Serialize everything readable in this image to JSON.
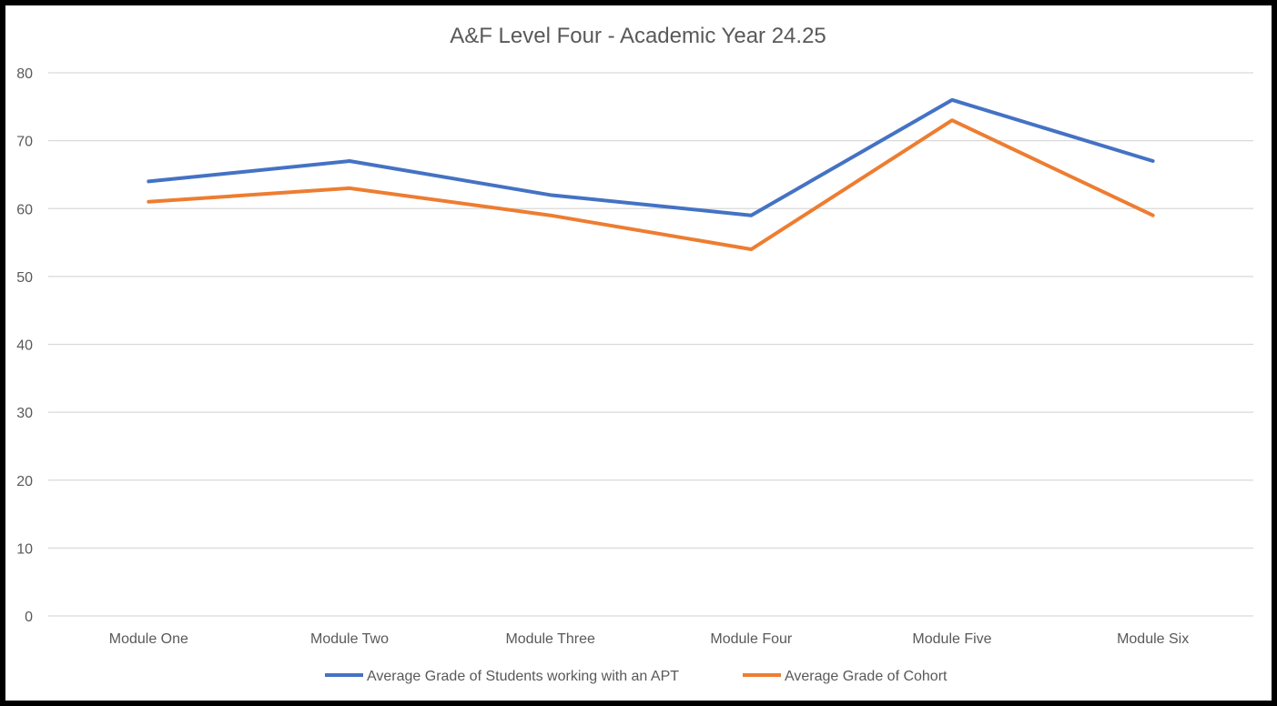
{
  "chart_data": {
    "type": "line",
    "title": "A&F Level Four - Academic Year 24.25",
    "categories": [
      "Module One",
      "Module Two",
      "Module Three",
      "Module Four",
      "Module Five",
      "Module Six"
    ],
    "series": [
      {
        "name": "Average Grade of Students working with an APT",
        "color": "#4472C4",
        "values": [
          64,
          67,
          62,
          59,
          76,
          67
        ]
      },
      {
        "name": "Average Grade of Cohort",
        "color": "#ED7D31",
        "values": [
          61,
          63,
          59,
          54,
          73,
          59
        ]
      }
    ],
    "ylim": [
      0,
      80
    ],
    "yticks": [
      0,
      10,
      20,
      30,
      40,
      50,
      60,
      70,
      80
    ],
    "grid": true,
    "legend": "bottom"
  }
}
